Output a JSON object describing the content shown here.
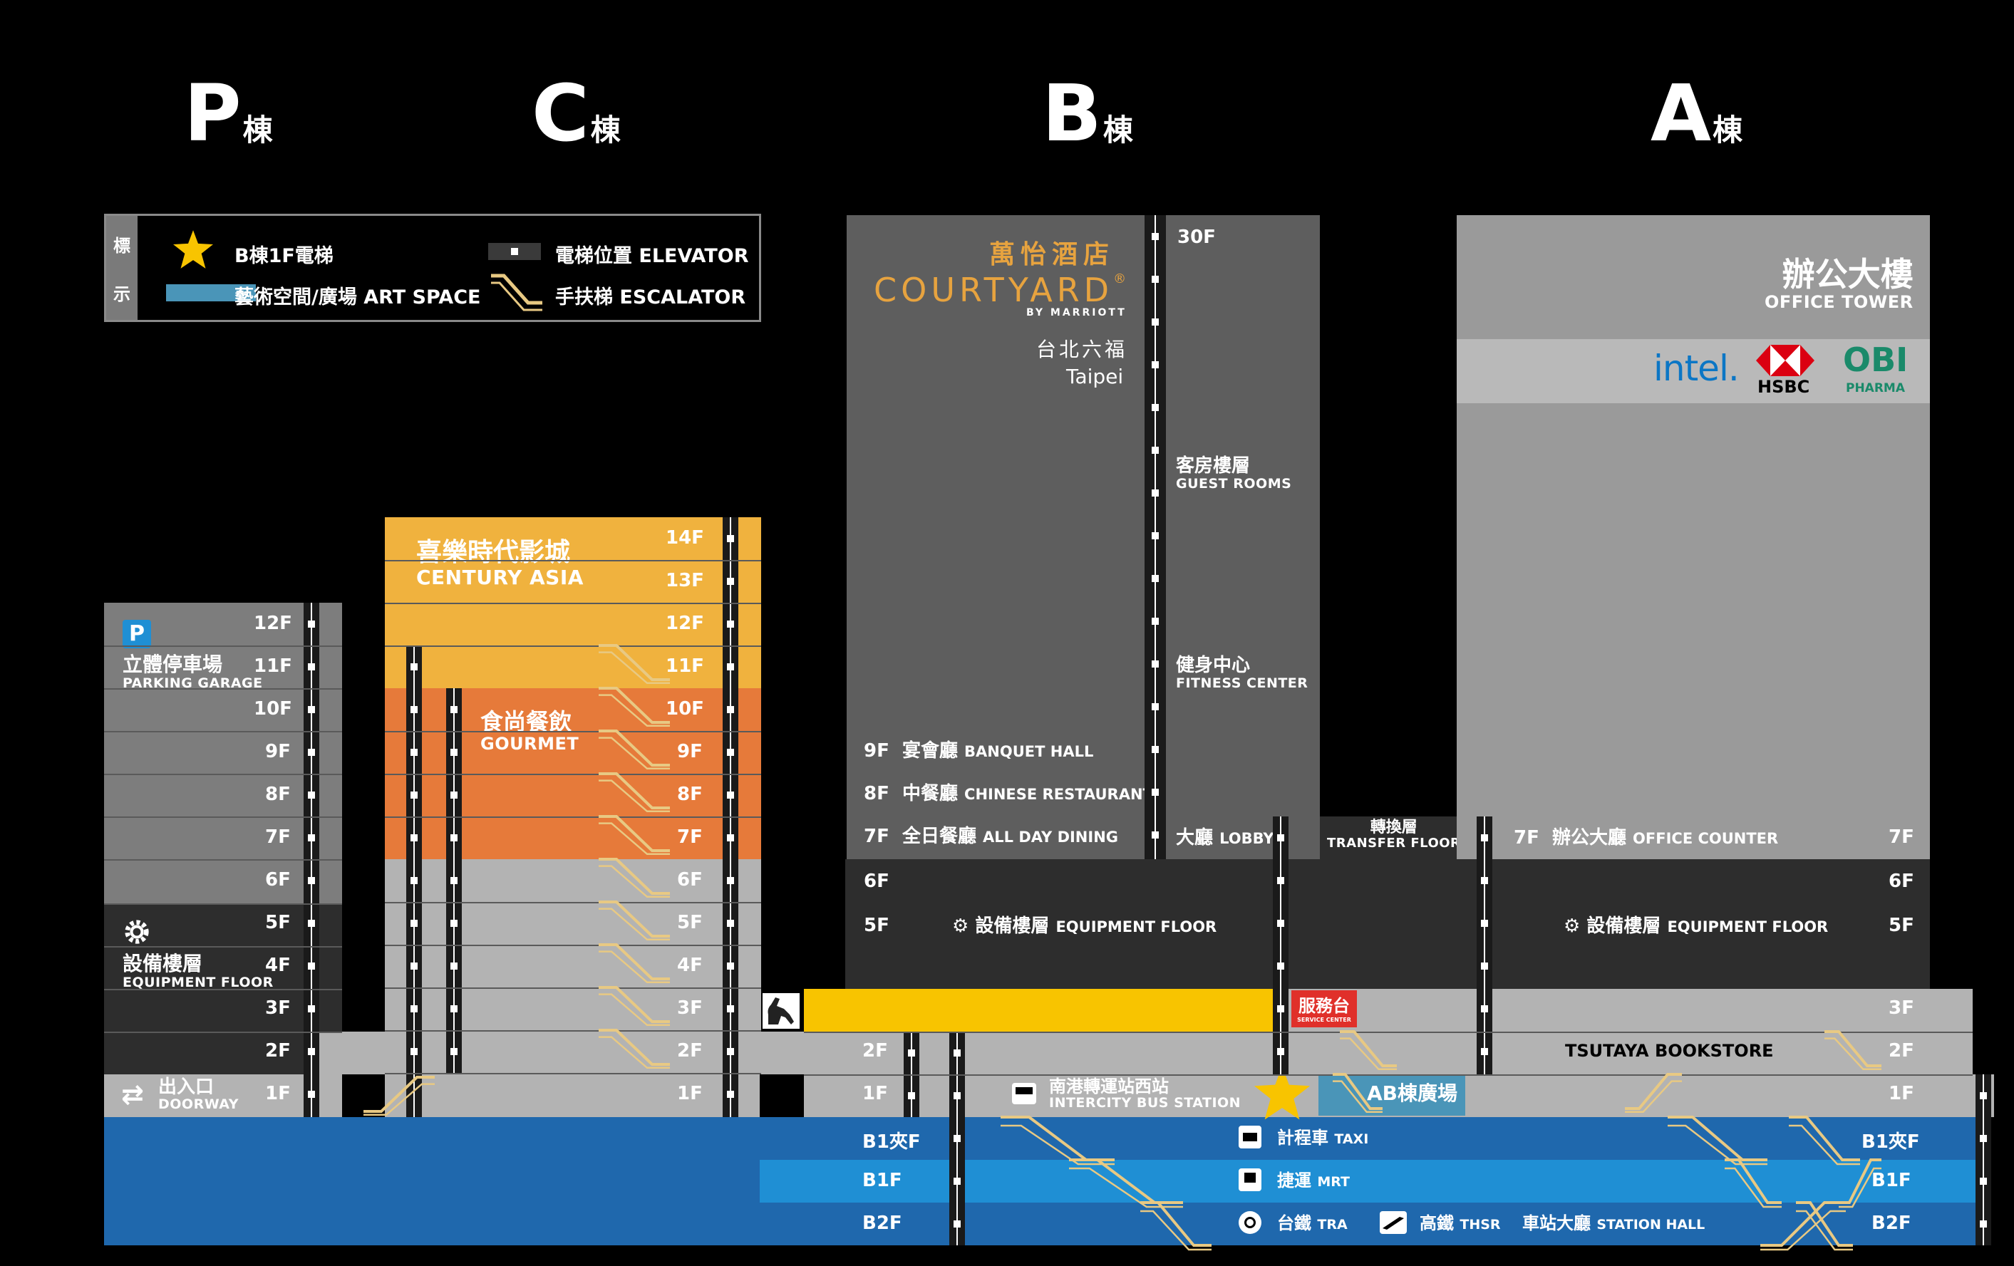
{
  "buildings": {
    "p": {
      "letter": "P",
      "suffix": "棟"
    },
    "c": {
      "letter": "C",
      "suffix": "棟"
    },
    "b": {
      "letter": "B",
      "suffix": "棟"
    },
    "a": {
      "letter": "A",
      "suffix": "棟"
    }
  },
  "legend": {
    "side_top": "標",
    "side_bottom": "示",
    "star_label": "B棟1F電梯",
    "art_label": "藝術空間/廣場 ART SPACE",
    "elevator_label": "電梯位置 ELEVATOR",
    "escalator_label": "手扶梯 ESCALATOR"
  },
  "p_building": {
    "parking_icon": "P",
    "parking_title": "立體停車場",
    "parking_sub": "PARKING GARAGE",
    "equip_title": "設備樓層",
    "equip_sub": "EQUIPMENT FLOOR",
    "door_title": "出入口",
    "door_sub": "DOORWAY",
    "floors": [
      "12F",
      "11F",
      "10F",
      "9F",
      "8F",
      "7F",
      "6F",
      "5F",
      "4F",
      "3F",
      "2F",
      "1F"
    ]
  },
  "c_building": {
    "cinema_title": "喜樂時代影城",
    "cinema_sub": "CENTURY ASIA",
    "gourmet_title": "食尚餐飲",
    "gourmet_sub": "GOURMET",
    "floors": [
      "14F",
      "13F",
      "12F",
      "11F",
      "10F",
      "9F",
      "8F",
      "7F",
      "6F",
      "5F",
      "4F",
      "3F",
      "2F",
      "1F"
    ]
  },
  "b_building": {
    "hotel_cn": "萬怡酒店",
    "hotel_en": "COURTYARD",
    "hotel_reg": "®",
    "hotel_by": "BY MARRIOTT",
    "hotel_city_cn": "台北六福",
    "hotel_city_en": "Taipei",
    "floor_30": "30F",
    "guest_cn": "客房樓層",
    "guest_en": "GUEST ROOMS",
    "fitness_cn": "健身中心",
    "fitness_en": "FITNESS CENTER",
    "f9": "9F",
    "f9_cn": "宴會廳",
    "f9_en": "BANQUET HALL",
    "f8": "8F",
    "f8_cn": "中餐廳",
    "f8_en": "CHINESE RESTAURANT",
    "f7": "7F",
    "f7_cn": "全日餐廳",
    "f7_en": "ALL DAY DINING",
    "lobby_cn": "大廳",
    "lobby_en": "LOBBY",
    "f6": "6F",
    "f5": "5F",
    "equip_cn": "設備樓層",
    "equip_en": "EQUIPMENT FLOOR",
    "f2": "2F",
    "f1": "1F",
    "service_cn": "服務台",
    "service_en": "SERVICE CENTER",
    "bus_cn": "南港轉運站西站",
    "bus_en": "INTERCITY BUS STATION",
    "ab_plaza": "AB棟廣場"
  },
  "transfer": {
    "cn": "轉換層",
    "en": "TRANSFER FLOOR"
  },
  "a_building": {
    "office_cn": "辦公大樓",
    "office_en": "OFFICE TOWER",
    "intel": "intel.",
    "hsbc": "HSBC",
    "obi": "OBI",
    "pharma": "PHARMA",
    "f7": "7F",
    "f7_cn": "辦公大廳",
    "f7_en": "OFFICE COUNTER",
    "f7_right": "7F",
    "f6": "6F",
    "f5": "5F",
    "equip_cn": "設備樓層",
    "equip_en": "EQUIPMENT FLOOR",
    "f3": "3F",
    "f2": "2F",
    "f1": "1F",
    "tsutaya": "TSUTAYA BOOKSTORE"
  },
  "basement": {
    "b1m_left": "B1夾F",
    "b1_left": "B1F",
    "b2_left": "B2F",
    "b1m_right": "B1夾F",
    "b1_right": "B1F",
    "b2_right": "B2F",
    "taxi_cn": "計程車",
    "taxi_en": "TAXI",
    "mrt_cn": "捷運",
    "mrt_en": "MRT",
    "tra_cn": "台鐵",
    "tra_en": "TRA",
    "thsr_cn": "高鐵",
    "thsr_en": "THSR",
    "hall_cn": "車站大廳",
    "hall_en": "STATION HALL"
  },
  "colors": {
    "bg": "#000000",
    "p_gray": "#7d7d7d",
    "dark_gray": "#2d2d2d",
    "mid_gray": "#5e5e5e",
    "light_gray": "#b3b3b3",
    "cinema_yellow": "#f0b23e",
    "gourmet_orange": "#e67a3a",
    "highlight_yellow": "#f8c400",
    "basement_blue": "#1f68ad",
    "mrt_blue": "#1f8fd4",
    "art_blue": "#4a95b8",
    "service_red": "#e0302a",
    "courtyard_gold": "#e7a33f",
    "star_yellow": "#f8c400"
  }
}
